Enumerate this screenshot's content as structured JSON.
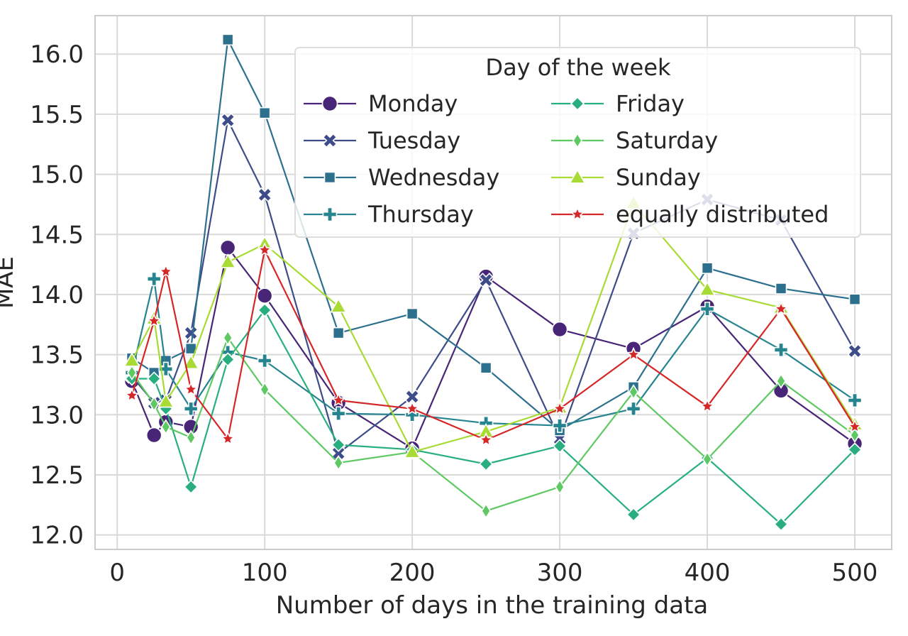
{
  "chart_data": {
    "type": "line",
    "xlabel": "Number of days in the training data",
    "ylabel": "MAE",
    "xlim": [
      -15,
      525
    ],
    "ylim": [
      11.88,
      16.32
    ],
    "xticks": [
      0,
      100,
      200,
      300,
      400,
      500
    ],
    "yticks": [
      12.0,
      12.5,
      13.0,
      13.5,
      14.0,
      14.5,
      15.0,
      15.5,
      16.0
    ],
    "ytick_labels": [
      "12.0",
      "12.5",
      "13.0",
      "13.5",
      "14.0",
      "14.5",
      "15.0",
      "15.5",
      "16.0"
    ],
    "grid": true,
    "legend": {
      "title": "Day of the week",
      "placement": "top-right",
      "columns": 2
    },
    "x": [
      10,
      25,
      33,
      50,
      75,
      100,
      150,
      200,
      250,
      300,
      350,
      400,
      450,
      500
    ],
    "series": [
      {
        "name": "Monday",
        "color": "#482576",
        "marker": "circle",
        "values": [
          13.28,
          12.83,
          12.94,
          12.9,
          14.39,
          13.99,
          13.1,
          12.72,
          14.15,
          13.71,
          13.55,
          13.9,
          13.2,
          12.76
        ]
      },
      {
        "name": "Tuesday",
        "color": "#3e4c8a",
        "marker": "x",
        "values": [
          13.32,
          13.1,
          13.12,
          13.68,
          15.45,
          14.83,
          12.68,
          13.15,
          14.12,
          12.8,
          14.51,
          14.79,
          14.62,
          13.53
        ]
      },
      {
        "name": "Wednesday",
        "color": "#2d708e",
        "marker": "square",
        "values": [
          13.47,
          13.35,
          13.45,
          13.55,
          16.12,
          15.51,
          13.68,
          13.84,
          13.39,
          12.87,
          13.23,
          14.22,
          14.05,
          13.96
        ]
      },
      {
        "name": "Thursday",
        "color": "#25848e",
        "marker": "plus",
        "values": [
          13.35,
          14.13,
          13.38,
          13.05,
          13.52,
          13.45,
          13.01,
          13.0,
          12.93,
          12.91,
          13.05,
          13.88,
          13.54,
          13.12
        ]
      },
      {
        "name": "Friday",
        "color": "#29af7f",
        "marker": "diamond",
        "values": [
          13.3,
          13.3,
          13.05,
          12.4,
          13.46,
          13.87,
          12.75,
          12.71,
          12.59,
          12.74,
          12.17,
          12.64,
          12.09,
          12.71
        ]
      },
      {
        "name": "Saturday",
        "color": "#5ec962",
        "marker": "thin-diamond",
        "values": [
          13.35,
          13.09,
          12.9,
          12.81,
          13.64,
          13.21,
          12.6,
          12.69,
          12.2,
          12.4,
          13.19,
          12.63,
          13.28,
          12.83
        ]
      },
      {
        "name": "Sunday",
        "color": "#a8db34",
        "marker": "triangle",
        "values": [
          13.45,
          13.8,
          13.11,
          13.43,
          14.27,
          14.42,
          13.9,
          12.69,
          12.86,
          13.06,
          14.76,
          14.04,
          13.89,
          12.92
        ]
      },
      {
        "name": "equally distributed",
        "color": "#d62728",
        "marker": "star",
        "values": [
          13.16,
          13.78,
          14.19,
          13.21,
          12.8,
          14.37,
          13.12,
          13.05,
          12.79,
          13.05,
          13.5,
          13.07,
          13.88,
          12.9
        ]
      }
    ]
  }
}
